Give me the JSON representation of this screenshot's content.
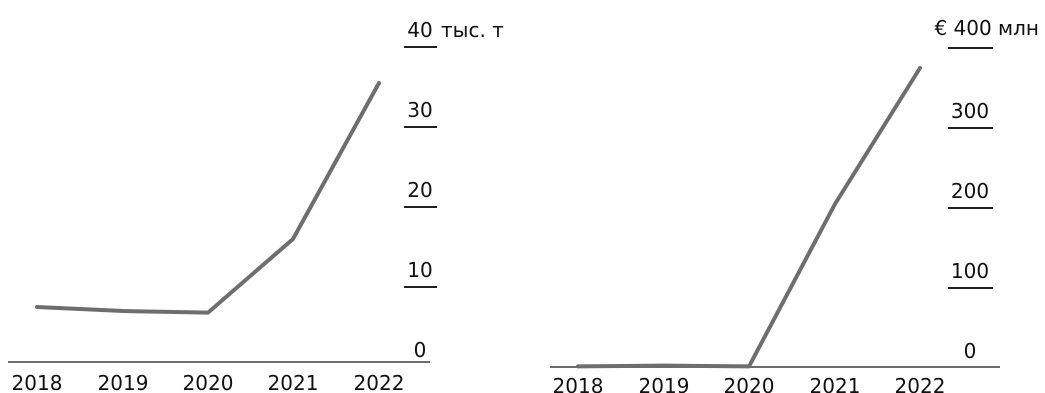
{
  "chart_data": [
    {
      "type": "line",
      "x": [
        "2018",
        "2019",
        "2020",
        "2021",
        "2022"
      ],
      "series": [
        {
          "values": [
            7.5,
            7.0,
            6.8,
            16.0,
            35.5
          ],
          "color": "#6e6e6e"
        }
      ],
      "ylim": [
        0,
        40
      ],
      "yticks": [
        "40",
        "30",
        "20",
        "10",
        "0"
      ],
      "unit_label": "тыс. т",
      "y_axis_side": "right",
      "grid": false
    },
    {
      "type": "line",
      "x": [
        "2018",
        "2019",
        "2020",
        "2021",
        "2022"
      ],
      "series": [
        {
          "values": [
            2,
            3,
            2,
            205,
            375
          ],
          "color": "#6e6e6e"
        }
      ],
      "ylim": [
        0,
        400
      ],
      "yticks": [
        "400",
        "300",
        "200",
        "100",
        "0"
      ],
      "unit_label": "€ 400 млн",
      "y_axis_side": "right",
      "grid": false
    }
  ]
}
